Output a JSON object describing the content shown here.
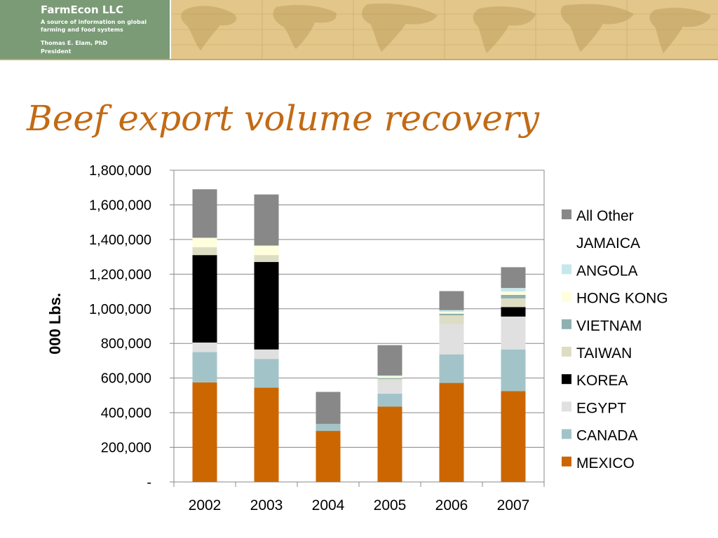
{
  "header": {
    "company": "FarmEcon LLC",
    "tagline_1": "A source of information on global",
    "tagline_2": "farming and food systems",
    "person": "Thomas E. Elam, PhD",
    "role": "President"
  },
  "slide": {
    "title": "Beef export volume recovery"
  },
  "chart_data": {
    "type": "bar",
    "stacked": true,
    "title": "Beef export volume recovery",
    "xlabel": "",
    "ylabel": "000 Lbs.",
    "categories": [
      "2002",
      "2003",
      "2004",
      "2005",
      "2006",
      "2007"
    ],
    "ylim": [
      0,
      1800000
    ],
    "yticks": [
      0,
      200000,
      400000,
      600000,
      800000,
      1000000,
      1200000,
      1400000,
      1600000,
      1800000
    ],
    "ytick_labels": [
      "-",
      "200,000",
      "400,000",
      "600,000",
      "800,000",
      "1,000,000",
      "1,200,000",
      "1,400,000",
      "1,600,000",
      "1,800,000"
    ],
    "grid": true,
    "legend_position": "right",
    "series": [
      {
        "name": "MEXICO",
        "color": "#cc6600",
        "values": [
          575000,
          545000,
          295000,
          435000,
          572000,
          525000
        ]
      },
      {
        "name": "CANADA",
        "color": "#a2c4c9",
        "values": [
          175000,
          165000,
          40000,
          75000,
          165000,
          240000
        ]
      },
      {
        "name": "EGYPT",
        "color": "#e0e0e0",
        "values": [
          55000,
          55000,
          0,
          75000,
          175000,
          190000
        ]
      },
      {
        "name": "KOREA",
        "color": "#000000",
        "values": [
          505000,
          505000,
          0,
          0,
          0,
          55000
        ]
      },
      {
        "name": "TAIWAN",
        "color": "#ddddc4",
        "values": [
          45000,
          40000,
          0,
          10000,
          50000,
          50000
        ]
      },
      {
        "name": "VIETNAM",
        "color": "#8eb0b0",
        "values": [
          0,
          0,
          0,
          5000,
          10000,
          20000
        ]
      },
      {
        "name": "HONG KONG",
        "color": "#fffedd",
        "values": [
          55000,
          55000,
          0,
          10000,
          10000,
          20000
        ]
      },
      {
        "name": "ANGOLA",
        "color": "#c6e8ec",
        "values": [
          0,
          0,
          0,
          5000,
          10000,
          20000
        ]
      },
      {
        "name": "JAMAICA",
        "color": "#ffffff",
        "values": [
          0,
          0,
          0,
          0,
          0,
          0
        ]
      },
      {
        "name": "All Other",
        "color": "#888888",
        "values": [
          280000,
          295000,
          185000,
          175000,
          110000,
          120000
        ]
      }
    ]
  }
}
